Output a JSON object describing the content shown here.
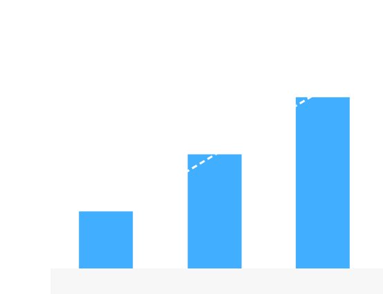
{
  "chart_data": {
    "type": "bar",
    "categories": [
      "",
      "",
      ""
    ],
    "series": [
      {
        "values": [
          1,
          2,
          3
        ]
      }
    ],
    "trend_overlay": {
      "style": "dashed",
      "color": "#ffffff",
      "values": [
        1,
        2,
        3
      ]
    },
    "ylim": [
      0,
      4.6
    ],
    "grid": false,
    "legend": "none",
    "colors": {
      "bar": "#42aeff",
      "background": "#ffffff",
      "axis_band": "#f7f7f7"
    }
  }
}
